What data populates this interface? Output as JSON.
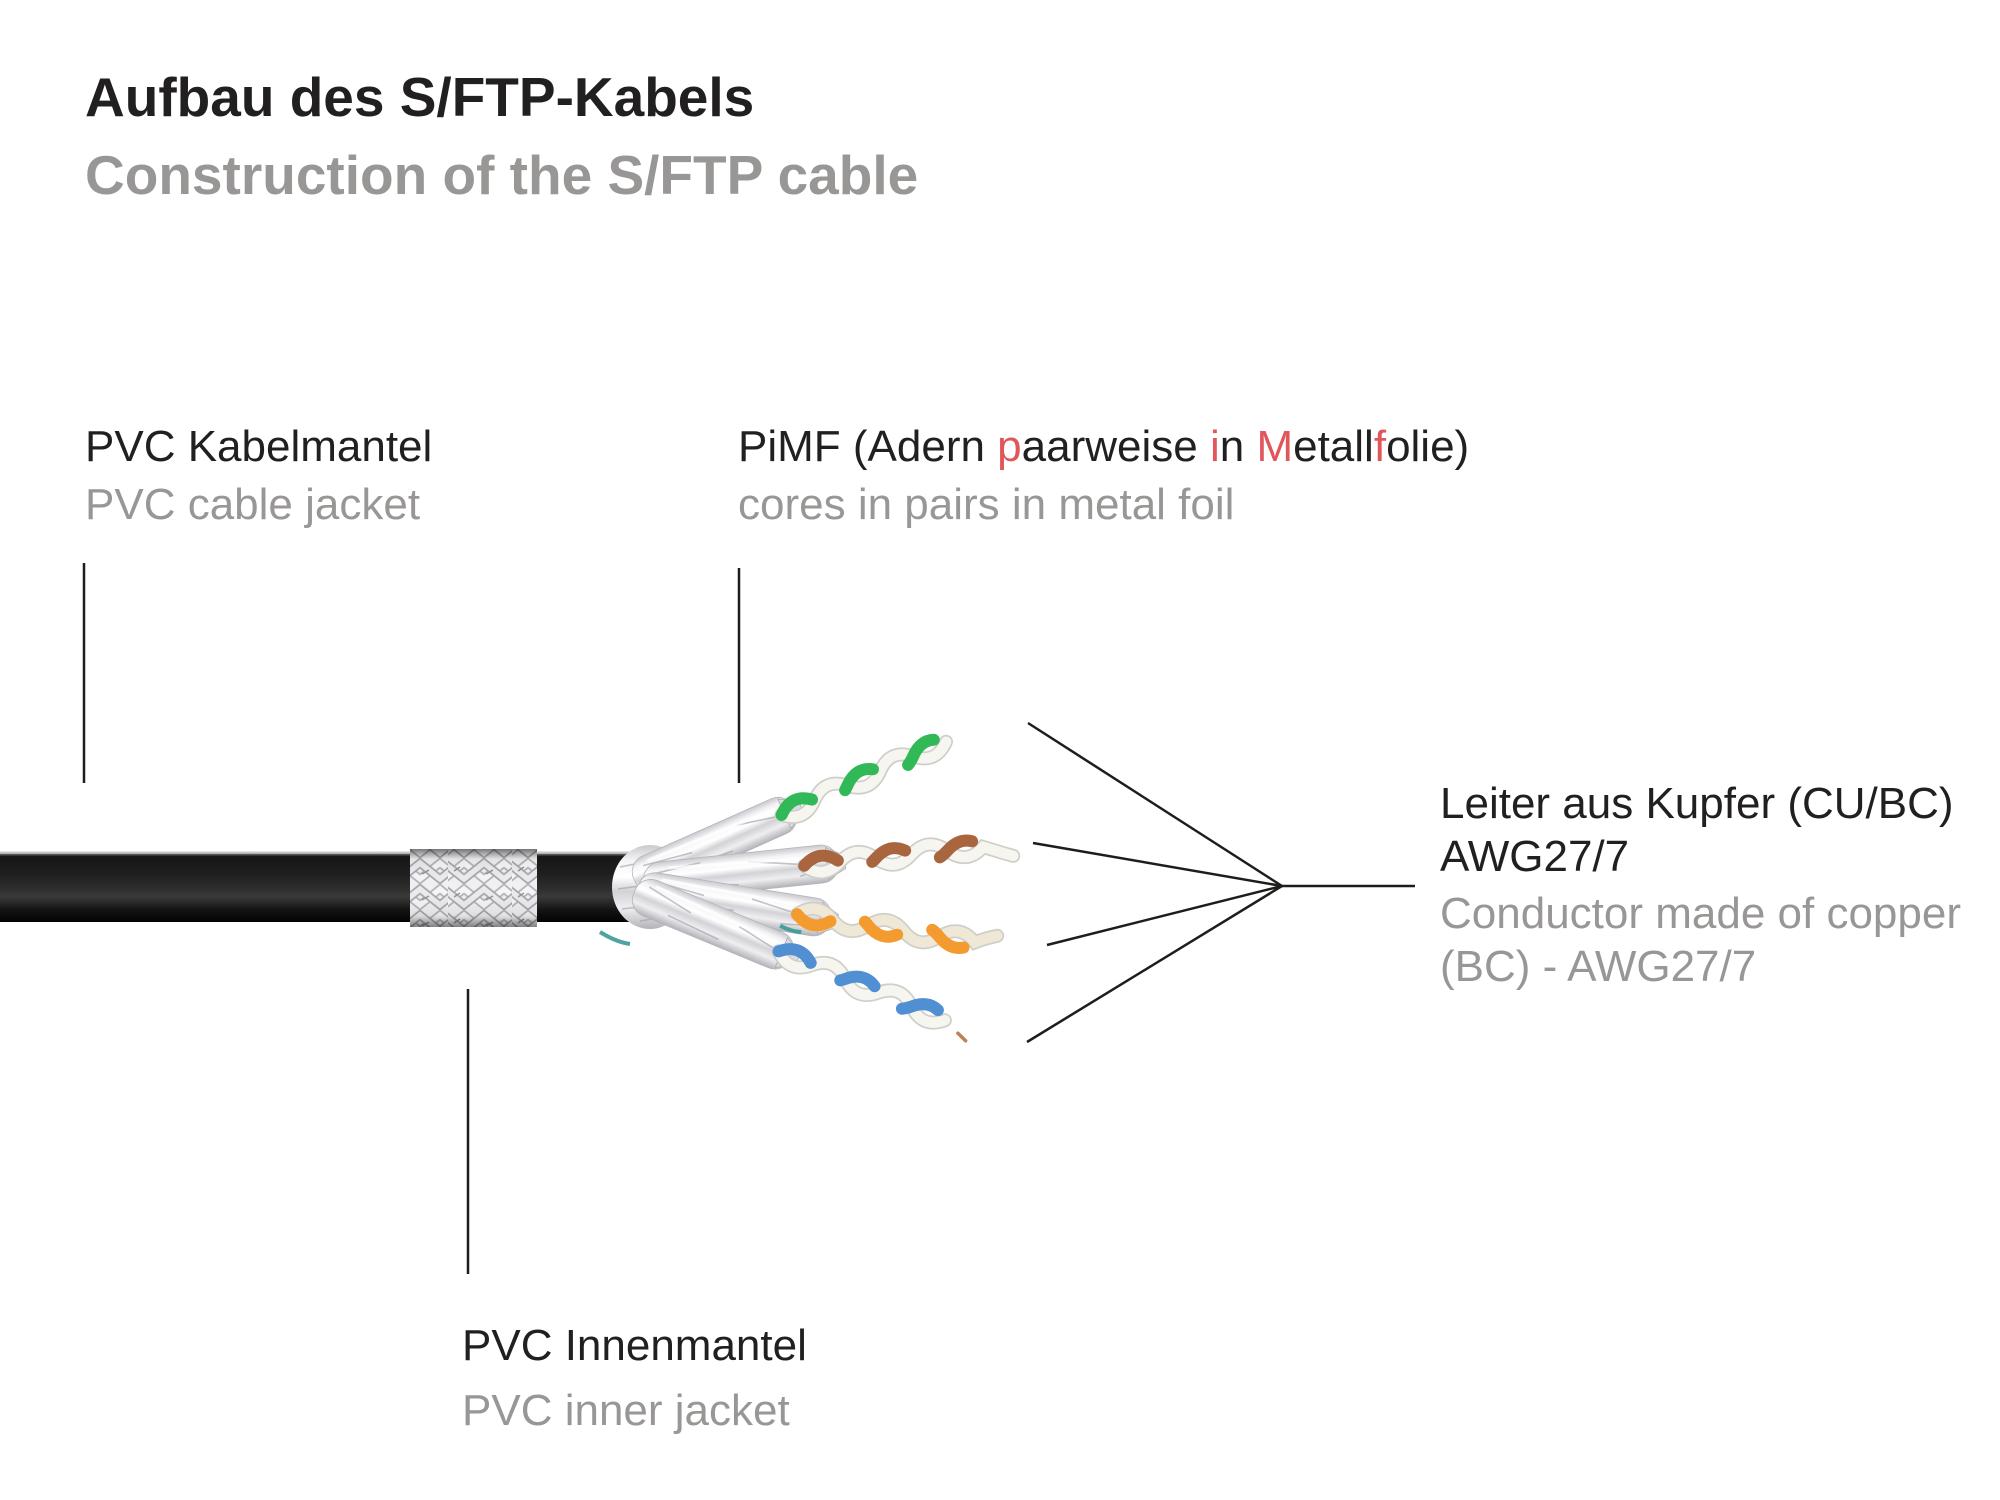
{
  "title": {
    "de": "Aufbau des S/FTP-Kabels",
    "en": "Construction of the S/FTP cable"
  },
  "labels": {
    "cable_jacket": {
      "de": "PVC Kabelmantel",
      "en": "PVC cable jacket"
    },
    "pimf": {
      "segments": [
        {
          "text": "PiMF (Adern ",
          "red": false
        },
        {
          "text": "p",
          "red": true
        },
        {
          "text": "aarweise ",
          "red": false
        },
        {
          "text": "i",
          "red": true
        },
        {
          "text": "n ",
          "red": false
        },
        {
          "text": "M",
          "red": true
        },
        {
          "text": "etall",
          "red": false
        },
        {
          "text": "f",
          "red": true
        },
        {
          "text": "olie)",
          "red": false
        }
      ],
      "en": "cores in pairs in metal foil"
    },
    "conductor": {
      "de_line1": "Leiter aus Kupfer (CU/BC)",
      "de_line2": "AWG27/7",
      "en_line1": "Conductor made of copper",
      "en_line2": "(BC) - AWG27/7"
    },
    "inner_jacket": {
      "de": "PVC Innenmantel",
      "en": "PVC inner jacket"
    }
  },
  "colors": {
    "text_black": "#221f20",
    "text_gray": "#999795",
    "accent_red": "#e0565b",
    "line_black": "#1d1d1b",
    "jacket_black": "#1c1c1c",
    "braid_silver": "#f2f2f4",
    "foil_silver": "#e9e9ec",
    "wire_green": "#31b857",
    "wire_brown": "#a8653e",
    "wire_orange": "#f39b2f",
    "wire_blue": "#4f8fd2"
  }
}
